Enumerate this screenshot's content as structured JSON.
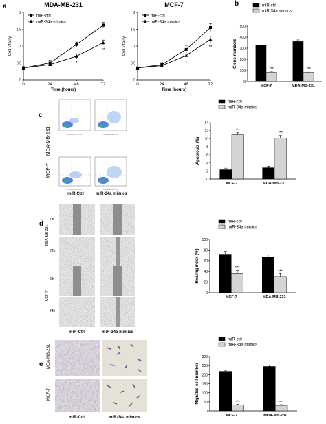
{
  "panel_letters": {
    "a": "a",
    "b": "b",
    "c": "c",
    "d": "d",
    "e": "e"
  },
  "colors": {
    "ctrl": "#000000",
    "mimics": "#d4d4d4",
    "purple": "#7b3fa6",
    "flow_blue": "#2f6ee0"
  },
  "microscopy": {
    "cell_lines": [
      "MDA-MB-231",
      "MCF-7"
    ],
    "conditions": [
      "miR-Ctrl",
      "miR-34a mimics"
    ],
    "time_points": [
      "0h",
      "24h"
    ],
    "flow_x_axis": "Annexin V-FITC",
    "flow_y_axis": "PI"
  },
  "chart_data": [
    {
      "id": "a1",
      "type": "line",
      "title": "MDA-MB-231",
      "xlabel": "Time (hours)",
      "ylabel": "Cell vitality",
      "x": [
        0,
        24,
        48,
        72
      ],
      "xlim": [
        0,
        72
      ],
      "ylim": [
        0,
        2.0
      ],
      "yticks": [
        "0",
        "0.5",
        "1",
        "1.5",
        "2"
      ],
      "series": [
        {
          "name": "miR-ctrl",
          "marker": "square",
          "values": [
            0.35,
            0.5,
            1.05,
            1.62
          ],
          "errors": [
            0.04,
            0.08,
            0.07,
            0.08
          ]
        },
        {
          "name": "miR-34a mimics",
          "marker": "triangle",
          "values": [
            0.35,
            0.45,
            0.7,
            1.1
          ],
          "errors": [
            0.04,
            0.08,
            0.07,
            0.08
          ]
        }
      ],
      "annotations": [
        {
          "x": 48,
          "text": "*"
        },
        {
          "x": 72,
          "text": "**"
        }
      ],
      "legend": "top-left"
    },
    {
      "id": "a2",
      "type": "line",
      "title": "MCF-7",
      "xlabel": "Time (hours)",
      "ylabel": "Cell vitality",
      "x": [
        0,
        24,
        48,
        72
      ],
      "xlim": [
        0,
        72
      ],
      "ylim": [
        0,
        2.0
      ],
      "yticks": [
        "0",
        "0.5",
        "1",
        "1.5",
        "2"
      ],
      "series": [
        {
          "name": "miR-ctrl",
          "marker": "square",
          "values": [
            0.35,
            0.45,
            0.9,
            1.55
          ],
          "errors": [
            0.03,
            0.06,
            0.12,
            0.12
          ]
        },
        {
          "name": "miR-34a mimics",
          "marker": "triangle",
          "values": [
            0.35,
            0.42,
            0.72,
            1.2
          ],
          "errors": [
            0.03,
            0.06,
            0.1,
            0.1
          ]
        }
      ],
      "annotations": [
        {
          "x": 48,
          "text": "*"
        },
        {
          "x": 72,
          "text": "**"
        }
      ],
      "legend": "top-left"
    },
    {
      "id": "b",
      "type": "bar",
      "title": "",
      "xlabel": "",
      "ylabel": "Clone numbers",
      "categories": [
        "MCF-7",
        "MDA-MB-231"
      ],
      "ylim": [
        0,
        500
      ],
      "yticks": [
        "0",
        "100",
        "200",
        "300",
        "400",
        "500"
      ],
      "series": [
        {
          "name": "miR-ctrl",
          "values": [
            325,
            360
          ],
          "errors": [
            22,
            15
          ]
        },
        {
          "name": "miR-34a mimics",
          "values": [
            80,
            78
          ],
          "errors": [
            8,
            8
          ]
        }
      ],
      "annotations": [
        "***",
        "***"
      ],
      "legend": "top"
    },
    {
      "id": "c",
      "type": "bar",
      "title": "",
      "xlabel": "",
      "ylabel": "Apoptosis (%)",
      "categories": [
        "MCF-7",
        "MDA-MB-231"
      ],
      "ylim": [
        0,
        14
      ],
      "yticks": [
        "0",
        "2",
        "4",
        "6",
        "8",
        "10",
        "12",
        "14"
      ],
      "series": [
        {
          "name": "miR-ctrl",
          "values": [
            2.3,
            2.8
          ],
          "errors": [
            0.4,
            0.4
          ]
        },
        {
          "name": "miR-34a mimics",
          "values": [
            11.0,
            10.2
          ],
          "errors": [
            0.5,
            0.6
          ]
        }
      ],
      "annotations": [
        "***",
        "***"
      ],
      "legend": "top"
    },
    {
      "id": "d",
      "type": "bar",
      "title": "",
      "xlabel": "",
      "ylabel": "Healing index (%)",
      "categories": [
        "MCF-7",
        "MDA-MB-231"
      ],
      "ylim": [
        0,
        100
      ],
      "yticks": [
        "0",
        "20",
        "40",
        "60",
        "80",
        "100"
      ],
      "series": [
        {
          "name": "miR-ctrl",
          "values": [
            72,
            67
          ],
          "errors": [
            5,
            4
          ]
        },
        {
          "name": "miR-34a mimics",
          "values": [
            36,
            30
          ],
          "errors": [
            6,
            6
          ]
        }
      ],
      "annotations": [
        "***",
        "***"
      ],
      "legend": "top"
    },
    {
      "id": "e",
      "type": "bar",
      "title": "",
      "xlabel": "",
      "ylabel": "Migrated cell number",
      "categories": [
        "MCF-7",
        "MDA-MB-231"
      ],
      "ylim": [
        0,
        300
      ],
      "yticks": [
        "0",
        "50",
        "100",
        "150",
        "200",
        "250",
        "300"
      ],
      "series": [
        {
          "name": "miR-ctrl",
          "values": [
            218,
            245
          ],
          "errors": [
            6,
            8
          ]
        },
        {
          "name": "miR-34a mimics",
          "values": [
            33,
            30
          ],
          "errors": [
            4,
            4
          ]
        }
      ],
      "annotations": [
        "***",
        "***"
      ],
      "legend": "top"
    }
  ]
}
